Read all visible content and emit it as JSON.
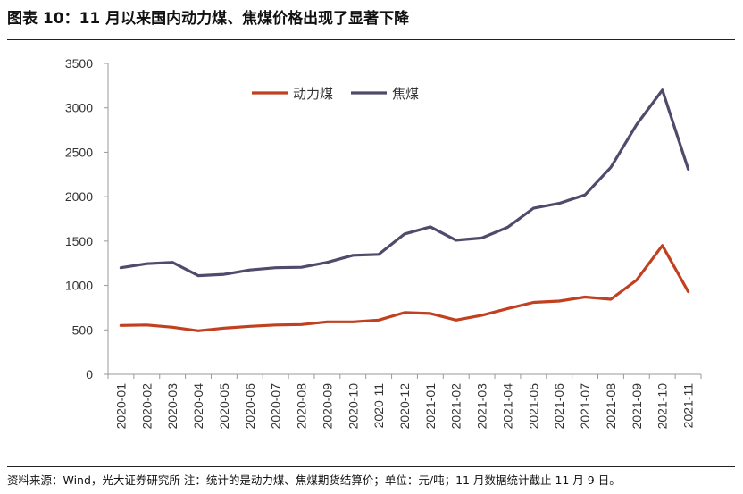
{
  "figure_title": "图表 10：11 月以来国内动力煤、焦煤价格出现了显著下降",
  "source_note": "资料来源：Wind，光大证券研究所   注：统计的是动力煤、焦煤期货结算价；单位：元/吨；11 月数据统计截止 11 月 9 日。",
  "colors": {
    "thermal_coal": "#c1401f",
    "coking_coal": "#4e4b6b",
    "axis": "#999999",
    "text": "#333333"
  },
  "chart_data": {
    "type": "line",
    "title": "",
    "xlabel": "",
    "ylabel": "",
    "ylim": [
      0,
      3500
    ],
    "yticks": [
      0,
      500,
      1000,
      1500,
      2000,
      2500,
      3000,
      3500
    ],
    "grid": false,
    "legend_position": "top-center",
    "categories": [
      "2020-01",
      "2020-02",
      "2020-03",
      "2020-04",
      "2020-05",
      "2020-06",
      "2020-07",
      "2020-08",
      "2020-09",
      "2020-10",
      "2020-11",
      "2020-12",
      "2021-01",
      "2021-02",
      "2021-03",
      "2021-04",
      "2021-05",
      "2021-06",
      "2021-07",
      "2021-08",
      "2021-09",
      "2021-10",
      "2021-11"
    ],
    "series": [
      {
        "name": "动力煤",
        "color_key": "thermal_coal",
        "values": [
          550,
          555,
          530,
          490,
          520,
          540,
          555,
          560,
          590,
          590,
          610,
          695,
          685,
          610,
          665,
          740,
          810,
          825,
          870,
          845,
          1060,
          1450,
          930
        ]
      },
      {
        "name": "焦煤",
        "color_key": "coking_coal",
        "values": [
          1200,
          1245,
          1260,
          1110,
          1125,
          1175,
          1200,
          1205,
          1260,
          1340,
          1350,
          1580,
          1660,
          1510,
          1535,
          1655,
          1870,
          1925,
          2020,
          2330,
          2810,
          3200,
          2310
        ]
      }
    ]
  }
}
